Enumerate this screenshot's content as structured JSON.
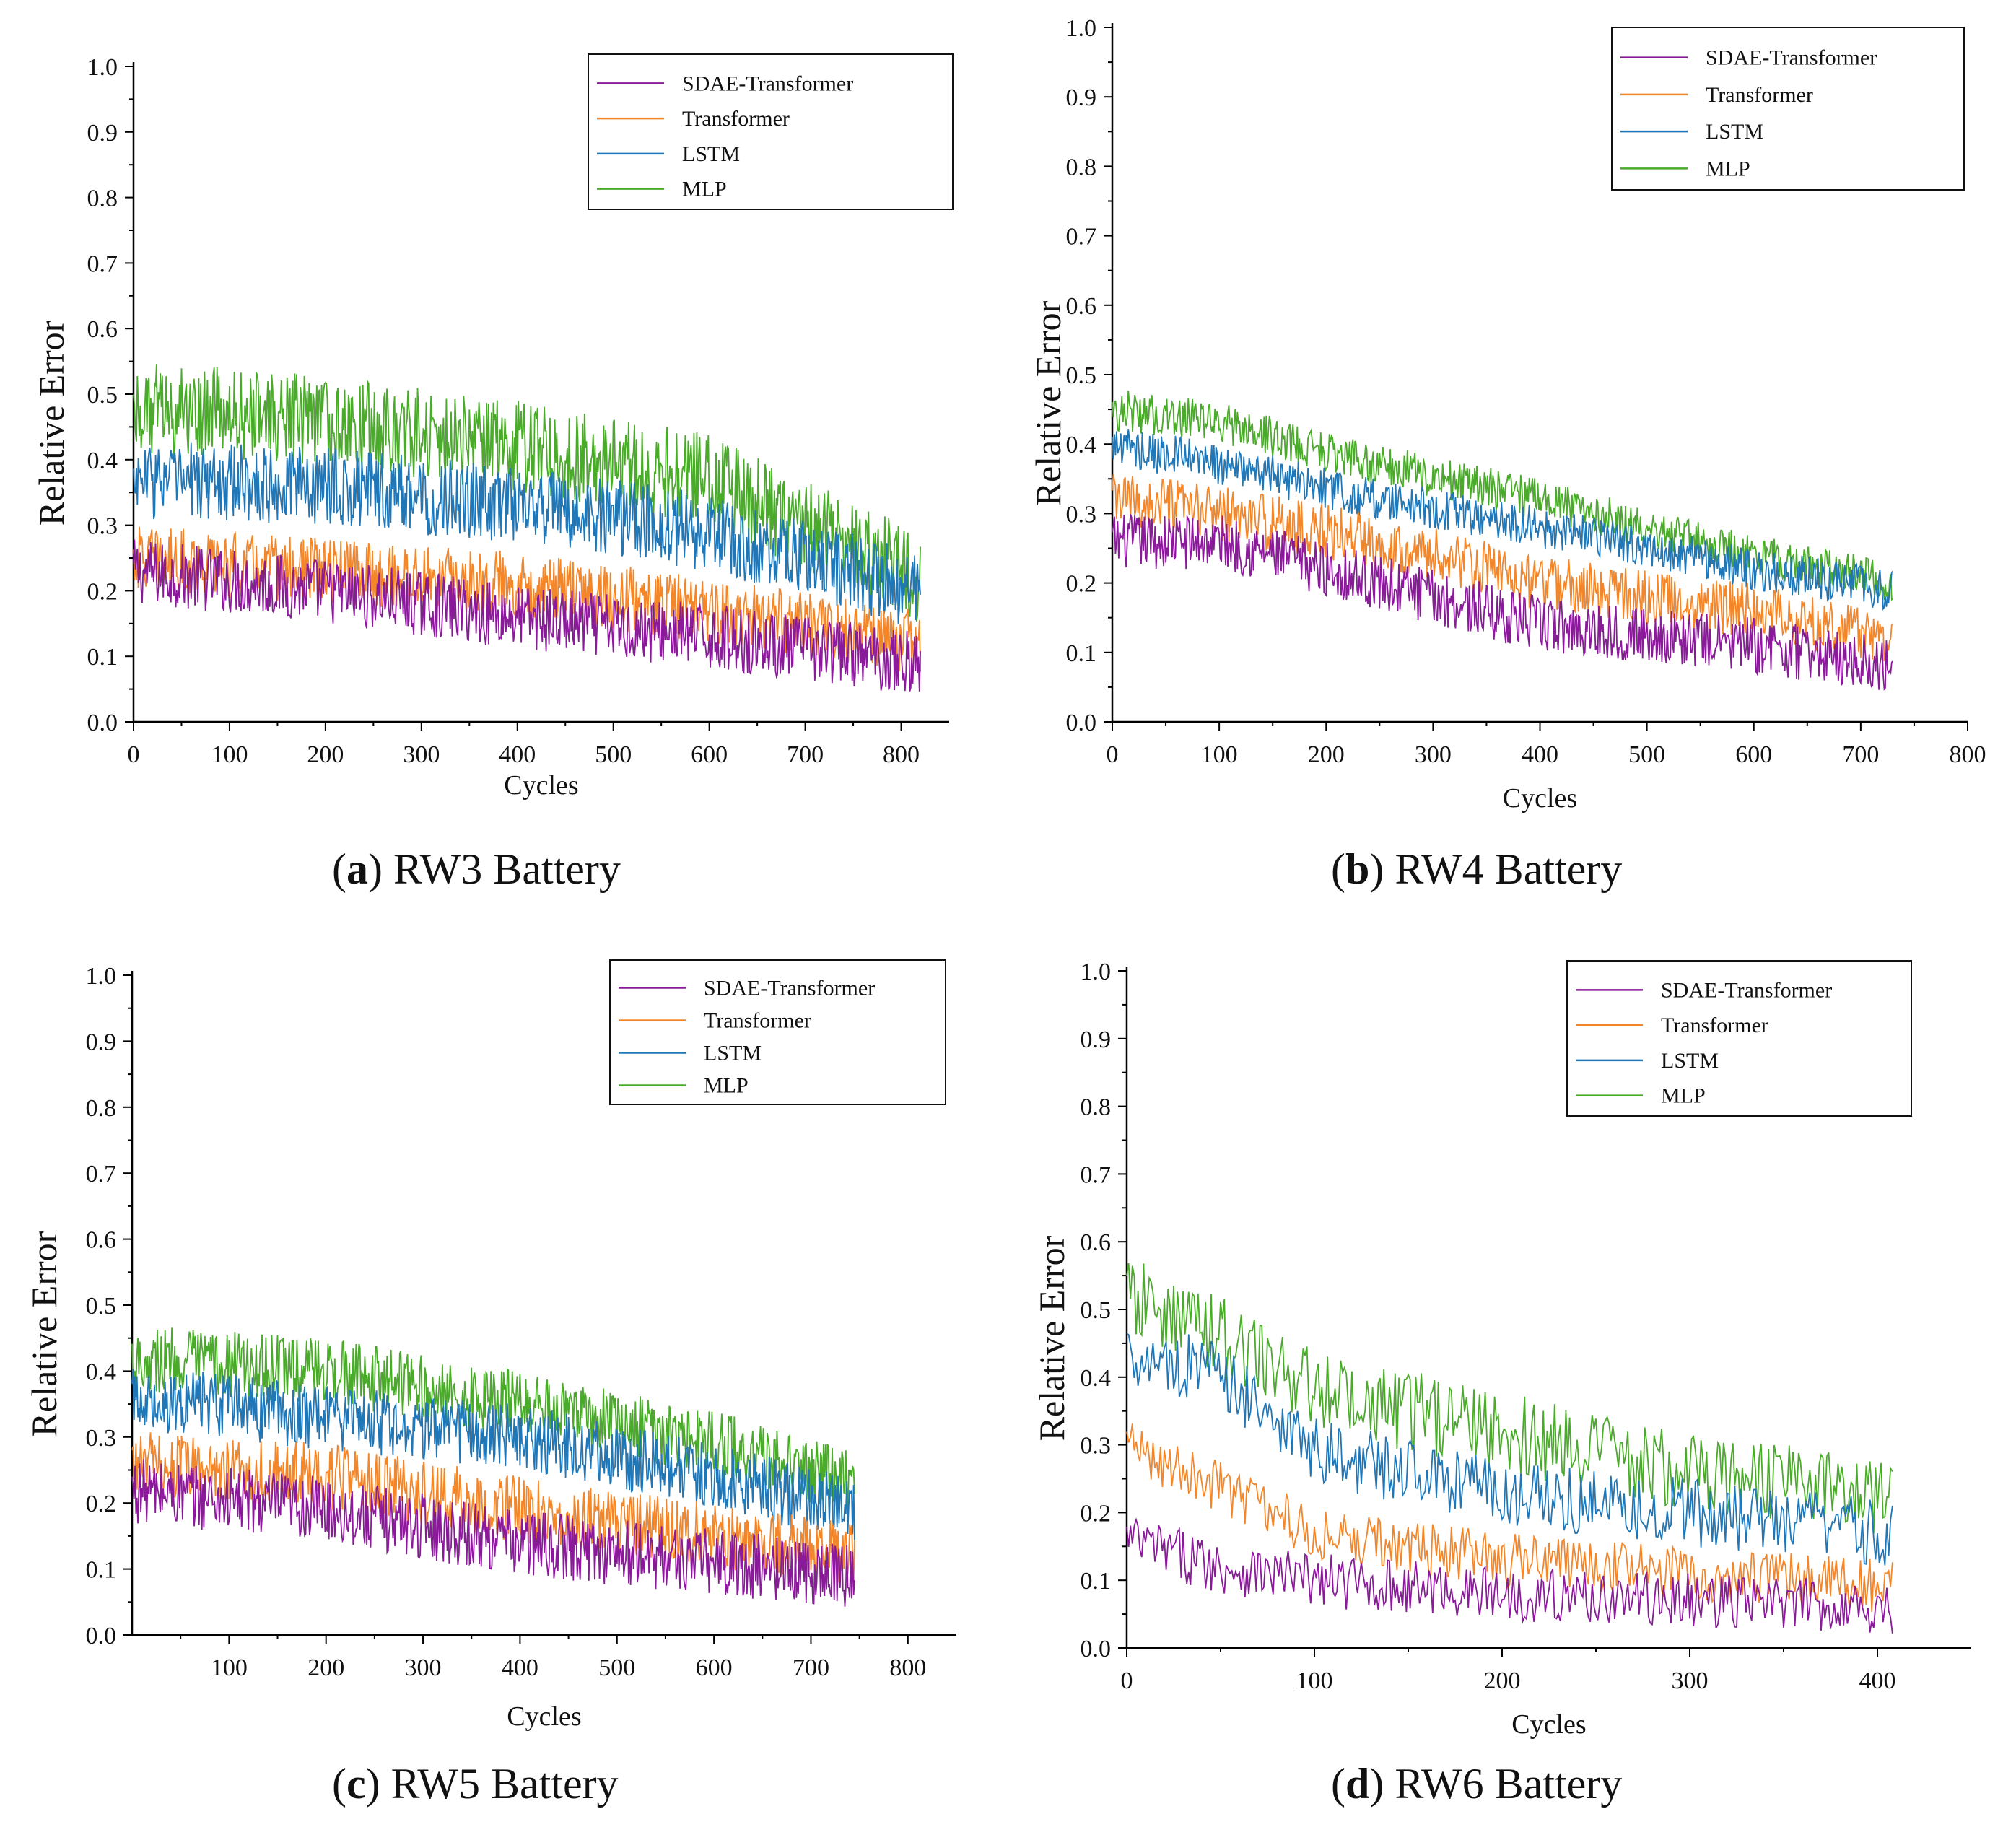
{
  "colors": {
    "SDAE-Transformer": "#8b1a9b",
    "Transformer": "#f4862a",
    "LSTM": "#1f77b8",
    "MLP": "#4aab2a"
  },
  "chart_data": [
    {
      "type": "line",
      "panel_letter": "a",
      "title": "RW3 Battery",
      "xlabel": "Cycles",
      "ylabel": "Relative Error",
      "xlim": [
        0,
        850
      ],
      "ylim": [
        0,
        1.0
      ],
      "xticks": [
        0,
        100,
        200,
        300,
        400,
        500,
        600,
        700,
        800
      ],
      "yticks": [
        0.0,
        0.1,
        0.2,
        0.3,
        0.4,
        0.5,
        0.6,
        0.7,
        0.8,
        0.9,
        1.0
      ],
      "legend_position": "top-right",
      "n_cycles": 820,
      "series": [
        {
          "name": "SDAE-Transformer",
          "trend_x": [
            0,
            200,
            400,
            600,
            820
          ],
          "trend_y": [
            0.23,
            0.2,
            0.16,
            0.13,
            0.09
          ],
          "noise": 0.05
        },
        {
          "name": "Transformer",
          "trend_x": [
            0,
            200,
            400,
            600,
            820
          ],
          "trend_y": [
            0.25,
            0.23,
            0.21,
            0.17,
            0.12
          ],
          "noise": 0.05
        },
        {
          "name": "LSTM",
          "trend_x": [
            0,
            200,
            400,
            600,
            820
          ],
          "trend_y": [
            0.37,
            0.36,
            0.33,
            0.29,
            0.2
          ],
          "noise": 0.06
        },
        {
          "name": "MLP",
          "trend_x": [
            0,
            200,
            400,
            600,
            820
          ],
          "trend_y": [
            0.48,
            0.46,
            0.42,
            0.37,
            0.22
          ],
          "noise": 0.07
        }
      ]
    },
    {
      "type": "line",
      "panel_letter": "b",
      "title": "RW4 Battery",
      "xlabel": "Cycles",
      "ylabel": "Relative Error",
      "xlim": [
        0,
        800
      ],
      "ylim": [
        0,
        1.0
      ],
      "xticks": [
        0,
        100,
        200,
        300,
        400,
        500,
        600,
        700,
        800
      ],
      "yticks": [
        0.0,
        0.1,
        0.2,
        0.3,
        0.4,
        0.5,
        0.6,
        0.7,
        0.8,
        0.9,
        1.0
      ],
      "legend_position": "top-right",
      "n_cycles": 730,
      "series": [
        {
          "name": "SDAE-Transformer",
          "trend_x": [
            0,
            100,
            250,
            400,
            600,
            730
          ],
          "trend_y": [
            0.26,
            0.26,
            0.2,
            0.14,
            0.11,
            0.08
          ],
          "noise": 0.04
        },
        {
          "name": "Transformer",
          "trend_x": [
            0,
            100,
            250,
            400,
            600,
            730
          ],
          "trend_y": [
            0.32,
            0.3,
            0.26,
            0.2,
            0.16,
            0.12
          ],
          "noise": 0.04
        },
        {
          "name": "LSTM",
          "trend_x": [
            0,
            100,
            250,
            400,
            600,
            730
          ],
          "trend_y": [
            0.4,
            0.37,
            0.32,
            0.28,
            0.22,
            0.19
          ],
          "noise": 0.03
        },
        {
          "name": "MLP",
          "trend_x": [
            0,
            100,
            250,
            400,
            600,
            730
          ],
          "trend_y": [
            0.45,
            0.43,
            0.37,
            0.32,
            0.24,
            0.2
          ],
          "noise": 0.03
        }
      ]
    },
    {
      "type": "line",
      "panel_letter": "c",
      "title": "RW5 Battery",
      "xlabel": "Cycles",
      "ylabel": "Relative Error",
      "xlim": [
        0,
        850
      ],
      "ylim": [
        0,
        1.0
      ],
      "xticks": [
        100,
        200,
        300,
        400,
        500,
        600,
        700,
        800
      ],
      "yticks": [
        0.0,
        0.1,
        0.2,
        0.3,
        0.4,
        0.5,
        0.6,
        0.7,
        0.8,
        0.9,
        1.0
      ],
      "legend_position": "top-right",
      "n_cycles": 745,
      "series": [
        {
          "name": "SDAE-Transformer",
          "trend_x": [
            0,
            200,
            400,
            600,
            745
          ],
          "trend_y": [
            0.22,
            0.19,
            0.14,
            0.11,
            0.09
          ],
          "noise": 0.05
        },
        {
          "name": "Transformer",
          "trend_x": [
            0,
            200,
            400,
            600,
            745
          ],
          "trend_y": [
            0.26,
            0.24,
            0.19,
            0.15,
            0.12
          ],
          "noise": 0.05
        },
        {
          "name": "LSTM",
          "trend_x": [
            0,
            200,
            400,
            600,
            745
          ],
          "trend_y": [
            0.36,
            0.33,
            0.3,
            0.24,
            0.19
          ],
          "noise": 0.05
        },
        {
          "name": "MLP",
          "trend_x": [
            0,
            200,
            400,
            600,
            745
          ],
          "trend_y": [
            0.42,
            0.4,
            0.35,
            0.29,
            0.23
          ],
          "noise": 0.05
        }
      ]
    },
    {
      "type": "line",
      "panel_letter": "d",
      "title": "RW6 Battery",
      "xlabel": "Cycles",
      "ylabel": "Relative Error",
      "xlim": [
        0,
        450
      ],
      "ylim": [
        0,
        1.0
      ],
      "xticks": [
        0,
        100,
        200,
        300,
        400
      ],
      "yticks": [
        0.0,
        0.1,
        0.2,
        0.3,
        0.4,
        0.5,
        0.6,
        0.7,
        0.8,
        0.9,
        1.0
      ],
      "legend_position": "top-right",
      "n_cycles": 408,
      "series": [
        {
          "name": "SDAE-Transformer",
          "trend_x": [
            0,
            50,
            100,
            200,
            300,
            408
          ],
          "trend_y": [
            0.16,
            0.12,
            0.1,
            0.08,
            0.07,
            0.06
          ],
          "noise": 0.04
        },
        {
          "name": "Transformer",
          "trend_x": [
            0,
            50,
            100,
            200,
            300,
            408
          ],
          "trend_y": [
            0.3,
            0.24,
            0.17,
            0.13,
            0.11,
            0.09
          ],
          "noise": 0.04
        },
        {
          "name": "LSTM",
          "trend_x": [
            0,
            50,
            100,
            200,
            300,
            408
          ],
          "trend_y": [
            0.44,
            0.4,
            0.29,
            0.23,
            0.2,
            0.17
          ],
          "noise": 0.05
        },
        {
          "name": "MLP",
          "trend_x": [
            0,
            50,
            100,
            200,
            300,
            408
          ],
          "trend_y": [
            0.52,
            0.46,
            0.38,
            0.32,
            0.26,
            0.22
          ],
          "noise": 0.06
        }
      ]
    }
  ]
}
